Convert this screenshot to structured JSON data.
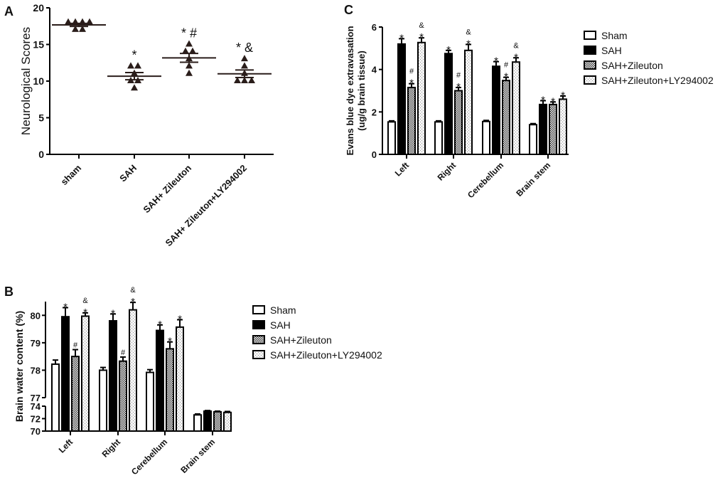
{
  "chart_data": [
    {
      "panel": "A",
      "type": "scatter",
      "ylabel": "Neurological Scores",
      "ylim": [
        0,
        20
      ],
      "yticks": [
        0,
        5,
        10,
        15,
        20
      ],
      "categories": [
        "sham",
        "SAH",
        "SAH+ Zileuton",
        "SAH+ Zileuton+LY294002"
      ],
      "points": [
        [
          18,
          18,
          18,
          18,
          17,
          17
        ],
        [
          12,
          12,
          11,
          10,
          10,
          9
        ],
        [
          15,
          14,
          14,
          13,
          12,
          11
        ],
        [
          13,
          12,
          11,
          10,
          10,
          10
        ]
      ],
      "mean": [
        17.67,
        10.67,
        13.17,
        11.0
      ],
      "sem": [
        0.21,
        0.49,
        0.6,
        0.52
      ],
      "annotations": [
        "",
        "*",
        "* #",
        "* &"
      ],
      "marker_color": "#2a1d1a"
    },
    {
      "panel": "B",
      "type": "bar",
      "ylabel": "Brain water content (%)",
      "broken_axis": {
        "lower": [
          70,
          74
        ],
        "upper": [
          77,
          80.5
        ]
      },
      "yticks": [
        70,
        72,
        74,
        77,
        78,
        79,
        80
      ],
      "categories": [
        "Left",
        "Right",
        "Cerebellum",
        "Brain stem"
      ],
      "series": [
        {
          "name": "Sham",
          "values": [
            78.22,
            78.0,
            77.92,
            72.6
          ],
          "errors": [
            0.15,
            0.1,
            0.1,
            0.15
          ],
          "annotations": [
            "",
            "",
            "",
            ""
          ]
        },
        {
          "name": "SAH",
          "values": [
            79.95,
            79.8,
            79.45,
            73.2
          ],
          "errors": [
            0.33,
            0.25,
            0.2,
            0.1
          ],
          "annotations": [
            "*",
            "*",
            "*",
            ""
          ]
        },
        {
          "name": "SAH+Zileuton",
          "values": [
            78.5,
            78.33,
            78.78,
            73.1
          ],
          "errors": [
            0.25,
            0.15,
            0.25,
            0.1
          ],
          "annotations": [
            "#",
            "#",
            "*",
            ""
          ]
        },
        {
          "name": "SAH+Zileuton+LY294002",
          "values": [
            79.97,
            80.2,
            79.57,
            73.0
          ],
          "errors": [
            0.12,
            0.27,
            0.27,
            0.15
          ],
          "annotations": [
            "& *",
            "& *",
            "*",
            ""
          ]
        }
      ],
      "legend": "right"
    },
    {
      "panel": "C",
      "type": "bar",
      "ylabel": "Evans blue dye extravasation",
      "ylabel2": "(ug/g brain tissue)",
      "ylim": [
        0,
        6
      ],
      "yticks": [
        0,
        2,
        4,
        6
      ],
      "categories": [
        "Left",
        "Right",
        "Cerebellum",
        "Brain stem"
      ],
      "series": [
        {
          "name": "Sham",
          "values": [
            1.53,
            1.53,
            1.55,
            1.4
          ],
          "errors": [
            0.05,
            0.05,
            0.05,
            0.05
          ],
          "annotations": [
            "",
            "",
            "",
            ""
          ]
        },
        {
          "name": "SAH",
          "values": [
            5.2,
            4.75,
            4.15,
            2.35
          ],
          "errors": [
            0.25,
            0.15,
            0.22,
            0.18
          ],
          "annotations": [
            "*",
            "*",
            "*",
            "*"
          ]
        },
        {
          "name": "SAH+Zileuton",
          "values": [
            3.15,
            3.0,
            3.48,
            2.35
          ],
          "errors": [
            0.18,
            0.15,
            0.15,
            0.12
          ],
          "annotations": [
            "# *",
            "# *",
            "# *",
            "*"
          ]
        },
        {
          "name": "SAH+Zileuton+LY294002",
          "values": [
            5.27,
            4.9,
            4.35,
            2.6
          ],
          "errors": [
            0.22,
            0.28,
            0.2,
            0.15
          ],
          "annotations": [
            "& *",
            "& *",
            "& *",
            "*"
          ]
        }
      ],
      "legend": "right"
    }
  ]
}
